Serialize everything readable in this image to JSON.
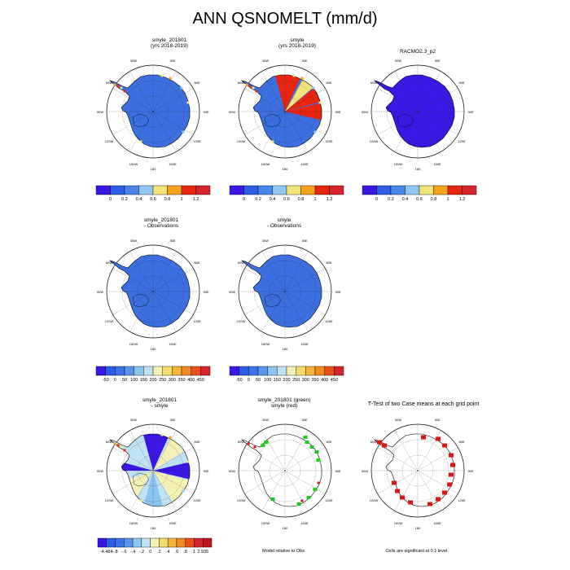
{
  "figure_title": "ANN QSNOMELT (mm/d)",
  "chart_data": [
    {
      "type": "heatmap",
      "panel": "row1-left",
      "title": [
        "smyle_201801",
        "(yrs 2018-2019)"
      ],
      "projection": "south polar stereographic",
      "field": "mean",
      "colorbar": {
        "labels": [
          "0",
          "0.2",
          "0.4",
          "0.6",
          "0.8",
          "1",
          "1.2"
        ],
        "colors": [
          "#3b17e6",
          "#2d5ce6",
          "#4a86ea",
          "#8ec8f2",
          "#f2e47a",
          "#f5a419",
          "#e8250f",
          "#d6242c"
        ]
      }
    },
    {
      "type": "heatmap",
      "panel": "row1-middle",
      "title": [
        "smyle",
        "(yrs 2018-2019)"
      ],
      "projection": "south polar stereographic",
      "field": "mean",
      "colorbar": {
        "labels": [
          "0",
          "0.2",
          "0.4",
          "0.6",
          "0.8",
          "1",
          "1.2"
        ],
        "colors": [
          "#3b17e6",
          "#2d5ce6",
          "#4a86ea",
          "#8ec8f2",
          "#f2e47a",
          "#f5a419",
          "#e8250f",
          "#d6242c"
        ]
      }
    },
    {
      "type": "heatmap",
      "panel": "row1-right",
      "title": [
        "RACMO2.3_p2"
      ],
      "projection": "south polar stereographic",
      "field": "observations",
      "colorbar": {
        "labels": [
          "0",
          "0.2",
          "0.4",
          "0.6",
          "0.8",
          "1",
          "1.2"
        ],
        "colors": [
          "#3b17e6",
          "#2d5ce6",
          "#4a86ea",
          "#8ec8f2",
          "#f2e47a",
          "#f5a419",
          "#e8250f",
          "#d6242c"
        ]
      }
    },
    {
      "type": "heatmap",
      "panel": "row2-left",
      "title": [
        "smyle_201801",
        "- Observations"
      ],
      "projection": "south polar stereographic",
      "field": "difference",
      "colorbar": {
        "labels": [
          "-50",
          "0",
          "50",
          "100",
          "150",
          "200",
          "250",
          "300",
          "350",
          "400",
          "450"
        ],
        "colors": [
          "#3b17e6",
          "#2d5ce6",
          "#3b73e8",
          "#5a95ec",
          "#8cc4f0",
          "#bfe3f5",
          "#f5f0b4",
          "#f5dc6e",
          "#f5b43c",
          "#f08a22",
          "#e8501a",
          "#d6242c"
        ]
      }
    },
    {
      "type": "heatmap",
      "panel": "row2-middle",
      "title": [
        "smyle",
        "- Observations"
      ],
      "projection": "south polar stereographic",
      "field": "difference",
      "colorbar": {
        "labels": [
          "-50",
          "0",
          "50",
          "100",
          "150",
          "200",
          "250",
          "300",
          "350",
          "400",
          "450"
        ],
        "colors": [
          "#3b17e6",
          "#2d5ce6",
          "#3b73e8",
          "#5a95ec",
          "#8cc4f0",
          "#bfe3f5",
          "#f5f0b4",
          "#f5dc6e",
          "#f5b43c",
          "#f08a22",
          "#e8501a",
          "#d6242c"
        ]
      }
    },
    {
      "type": "heatmap",
      "panel": "row3-left",
      "title": [
        "smyle_201801",
        "- smyle"
      ],
      "projection": "south polar stereographic",
      "field": "case difference",
      "colorbar": {
        "labels": [
          "-4.484",
          "-.8",
          "-.6",
          "-.4",
          "-.2",
          "0",
          ".2",
          ".4",
          ".6",
          ".8",
          "1",
          "2.935"
        ],
        "colors": [
          "#3b17e6",
          "#2d5ce6",
          "#3b73e8",
          "#5a95ec",
          "#8cc4f0",
          "#bfe3f5",
          "#f5f0b4",
          "#f5dc6e",
          "#f5b43c",
          "#f08a22",
          "#e8501a",
          "#d6242c",
          "#c0161e"
        ]
      }
    },
    {
      "type": "heatmap",
      "panel": "row3-middle",
      "title": [
        "smyle_201801 (green)",
        "smyle (red)"
      ],
      "projection": "south polar stereographic",
      "field": "model relative to obs",
      "note": "Model relative to Obs"
    },
    {
      "type": "heatmap",
      "panel": "row3-right",
      "title": [
        "T-Test of two Case means at each grid point"
      ],
      "projection": "south polar stereographic",
      "field": "significance",
      "note": "Cells are significant at 0.1 level."
    }
  ],
  "map_labels": {
    "lon": [
      "30W",
      "30E",
      "60W",
      "60E",
      "90W",
      "90E",
      "120W",
      "120E",
      "150W",
      "150E",
      "180"
    ]
  },
  "colors": {
    "ice_blue": "#3c6fe0",
    "ice_deep": "#3b17e6",
    "coast": "#000000",
    "green": "#19d219",
    "red": "#e01414"
  }
}
